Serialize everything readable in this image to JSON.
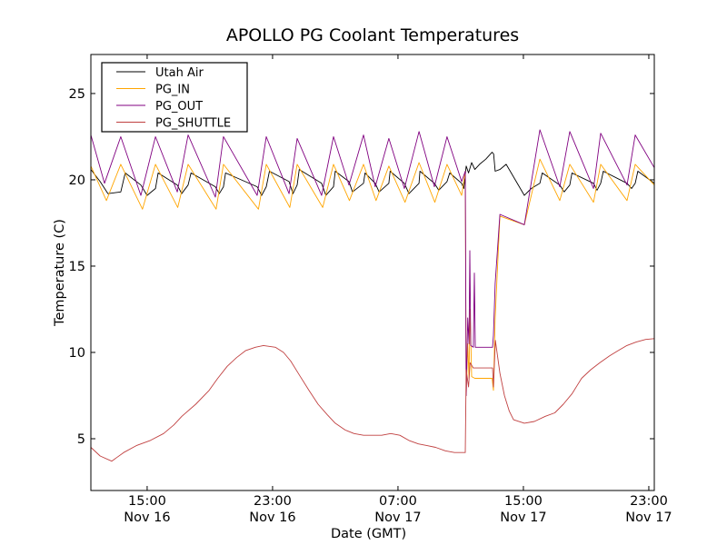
{
  "chart_data": {
    "type": "line",
    "title": "APOLLO PG Coolant Temperatures",
    "xlabel": "Date (GMT)",
    "ylabel": "Temperature (C)",
    "x_units": "hours since Nov 16 00:00 GMT",
    "xlim": [
      11.41,
      47.35
    ],
    "ylim": [
      2.0,
      27.26
    ],
    "grid": false,
    "legend_position": "top-left",
    "xticks": [
      {
        "value": 15,
        "label1": "15:00",
        "label2": "Nov 16"
      },
      {
        "value": 23,
        "label1": "23:00",
        "label2": "Nov 16"
      },
      {
        "value": 31,
        "label1": "07:00",
        "label2": "Nov 17"
      },
      {
        "value": 39,
        "label1": "15:00",
        "label2": "Nov 17"
      },
      {
        "value": 47,
        "label1": "23:00",
        "label2": "Nov 17"
      }
    ],
    "yticks": [
      {
        "value": 5,
        "label": "5"
      },
      {
        "value": 10,
        "label": "10"
      },
      {
        "value": 15,
        "label": "15"
      },
      {
        "value": 20,
        "label": "20"
      },
      {
        "value": 25,
        "label": "25"
      }
    ],
    "series": [
      {
        "name": "Utah Air",
        "color": "#000000",
        "points": [
          [
            11.41,
            20.6
          ],
          [
            12.0,
            19.9
          ],
          [
            12.5,
            19.2
          ],
          [
            13.32,
            19.3
          ],
          [
            13.6,
            20.4
          ],
          [
            14.6,
            19.7
          ],
          [
            15.0,
            19.1
          ],
          [
            15.53,
            19.5
          ],
          [
            15.7,
            20.4
          ],
          [
            16.92,
            19.7
          ],
          [
            17.2,
            19.2
          ],
          [
            17.61,
            19.7
          ],
          [
            17.8,
            20.4
          ],
          [
            19.35,
            19.6
          ],
          [
            19.6,
            19.2
          ],
          [
            19.87,
            19.6
          ],
          [
            20.0,
            20.4
          ],
          [
            22.02,
            19.6
          ],
          [
            22.3,
            19.1
          ],
          [
            22.6,
            19.6
          ],
          [
            22.8,
            20.5
          ],
          [
            24.05,
            19.9
          ],
          [
            24.3,
            19.2
          ],
          [
            24.57,
            19.7
          ],
          [
            24.7,
            20.6
          ],
          [
            26.13,
            19.8
          ],
          [
            26.4,
            19.1
          ],
          [
            26.89,
            19.6
          ],
          [
            27.0,
            20.5
          ],
          [
            27.87,
            19.9
          ],
          [
            28.1,
            19.3
          ],
          [
            28.8,
            19.8
          ],
          [
            28.9,
            20.4
          ],
          [
            29.55,
            19.8
          ],
          [
            29.8,
            19.3
          ],
          [
            30.42,
            19.8
          ],
          [
            30.5,
            20.5
          ],
          [
            31.41,
            19.8
          ],
          [
            31.7,
            19.2
          ],
          [
            32.34,
            19.8
          ],
          [
            32.4,
            20.5
          ],
          [
            33.32,
            19.8
          ],
          [
            33.6,
            19.4
          ],
          [
            34.13,
            19.9
          ],
          [
            34.3,
            20.4
          ],
          [
            35.06,
            19.8
          ],
          [
            35.2,
            19.5
          ],
          [
            35.35,
            20.8
          ],
          [
            35.5,
            20.4
          ],
          [
            35.7,
            21.0
          ],
          [
            35.9,
            20.6
          ],
          [
            36.2,
            20.9
          ],
          [
            36.6,
            21.2
          ],
          [
            37.0,
            21.6
          ],
          [
            37.1,
            21.5
          ],
          [
            37.2,
            20.5
          ],
          [
            37.5,
            20.6
          ],
          [
            37.9,
            20.9
          ],
          [
            39.06,
            19.1
          ],
          [
            39.5,
            19.5
          ],
          [
            40.05,
            19.8
          ],
          [
            40.2,
            20.4
          ],
          [
            41.32,
            19.7
          ],
          [
            41.6,
            19.3
          ],
          [
            41.96,
            19.7
          ],
          [
            42.1,
            20.4
          ],
          [
            43.47,
            19.8
          ],
          [
            43.7,
            19.4
          ],
          [
            43.93,
            19.8
          ],
          [
            44.1,
            20.5
          ],
          [
            45.61,
            19.8
          ],
          [
            45.9,
            19.5
          ],
          [
            46.13,
            19.8
          ],
          [
            46.3,
            20.5
          ],
          [
            47.35,
            19.8
          ]
        ]
      },
      {
        "name": "PG_IN",
        "color": "#ffa500",
        "points": [
          [
            11.41,
            20.8
          ],
          [
            12.4,
            18.8
          ],
          [
            13.32,
            20.9
          ],
          [
            14.7,
            18.3
          ],
          [
            15.53,
            20.9
          ],
          [
            16.95,
            18.4
          ],
          [
            17.61,
            20.9
          ],
          [
            19.4,
            18.3
          ],
          [
            19.87,
            20.9
          ],
          [
            22.1,
            18.3
          ],
          [
            22.6,
            20.9
          ],
          [
            24.1,
            18.4
          ],
          [
            24.57,
            20.9
          ],
          [
            26.2,
            18.4
          ],
          [
            26.89,
            20.9
          ],
          [
            27.9,
            18.8
          ],
          [
            28.8,
            20.9
          ],
          [
            29.6,
            18.8
          ],
          [
            30.42,
            20.8
          ],
          [
            31.45,
            18.7
          ],
          [
            32.34,
            21.0
          ],
          [
            33.35,
            18.7
          ],
          [
            34.13,
            20.9
          ],
          [
            35.06,
            19.1
          ],
          [
            35.29,
            20.5
          ],
          [
            35.35,
            7.5
          ],
          [
            35.45,
            10.5
          ],
          [
            35.53,
            8.5
          ],
          [
            35.6,
            12.5
          ],
          [
            35.7,
            8.6
          ],
          [
            35.9,
            8.5
          ],
          [
            37.0,
            8.5
          ],
          [
            37.09,
            7.8
          ],
          [
            37.2,
            12.0
          ],
          [
            37.5,
            17.9
          ],
          [
            39.06,
            17.4
          ],
          [
            40.05,
            21.2
          ],
          [
            41.32,
            18.8
          ],
          [
            41.96,
            20.9
          ],
          [
            43.47,
            18.7
          ],
          [
            43.93,
            20.9
          ],
          [
            45.61,
            18.8
          ],
          [
            46.13,
            20.9
          ],
          [
            47.35,
            19.7
          ]
        ]
      },
      {
        "name": "PG_OUT",
        "color": "#800080",
        "points": [
          [
            11.41,
            22.6
          ],
          [
            12.28,
            19.8
          ],
          [
            13.32,
            22.5
          ],
          [
            14.6,
            19.1
          ],
          [
            15.53,
            22.5
          ],
          [
            16.92,
            19.3
          ],
          [
            17.61,
            22.6
          ],
          [
            19.35,
            19.0
          ],
          [
            19.87,
            22.5
          ],
          [
            22.02,
            19.1
          ],
          [
            22.6,
            22.5
          ],
          [
            24.05,
            19.2
          ],
          [
            24.57,
            22.4
          ],
          [
            26.13,
            19.1
          ],
          [
            26.89,
            22.5
          ],
          [
            27.87,
            19.7
          ],
          [
            28.8,
            22.6
          ],
          [
            29.55,
            19.6
          ],
          [
            30.42,
            22.4
          ],
          [
            31.41,
            19.5
          ],
          [
            32.34,
            22.8
          ],
          [
            33.32,
            19.6
          ],
          [
            34.13,
            22.5
          ],
          [
            35.06,
            19.9
          ],
          [
            35.29,
            20.5
          ],
          [
            35.35,
            7.5
          ],
          [
            35.45,
            12.0
          ],
          [
            35.53,
            10.5
          ],
          [
            35.58,
            15.9
          ],
          [
            35.64,
            10.4
          ],
          [
            35.81,
            10.3
          ],
          [
            35.87,
            14.6
          ],
          [
            35.93,
            10.3
          ],
          [
            37.03,
            10.3
          ],
          [
            37.09,
            11.0
          ],
          [
            37.2,
            14.0
          ],
          [
            37.5,
            18.0
          ],
          [
            39.06,
            17.4
          ],
          [
            40.05,
            22.9
          ],
          [
            41.32,
            19.6
          ],
          [
            41.96,
            22.8
          ],
          [
            43.47,
            19.5
          ],
          [
            43.93,
            22.7
          ],
          [
            45.61,
            19.7
          ],
          [
            46.13,
            22.6
          ],
          [
            47.35,
            20.7
          ]
        ]
      },
      {
        "name": "PG_SHUTTLE",
        "color": "#c04040",
        "points": [
          [
            11.41,
            4.5
          ],
          [
            12.0,
            4.0
          ],
          [
            12.74,
            3.7
          ],
          [
            13.5,
            4.2
          ],
          [
            14.31,
            4.6
          ],
          [
            15.2,
            4.9
          ],
          [
            16.05,
            5.3
          ],
          [
            16.7,
            5.8
          ],
          [
            17.21,
            6.3
          ],
          [
            18.1,
            7.0
          ],
          [
            18.95,
            7.8
          ],
          [
            19.5,
            8.5
          ],
          [
            20.11,
            9.2
          ],
          [
            20.7,
            9.7
          ],
          [
            21.27,
            10.1
          ],
          [
            21.9,
            10.3
          ],
          [
            22.42,
            10.4
          ],
          [
            23.18,
            10.3
          ],
          [
            23.7,
            10.0
          ],
          [
            24.16,
            9.5
          ],
          [
            24.7,
            8.7
          ],
          [
            25.32,
            7.8
          ],
          [
            25.9,
            7.0
          ],
          [
            26.48,
            6.4
          ],
          [
            27.0,
            5.9
          ],
          [
            27.64,
            5.5
          ],
          [
            28.2,
            5.3
          ],
          [
            28.8,
            5.2
          ],
          [
            29.4,
            5.2
          ],
          [
            29.96,
            5.2
          ],
          [
            30.54,
            5.3
          ],
          [
            31.12,
            5.2
          ],
          [
            31.7,
            4.9
          ],
          [
            32.3,
            4.7
          ],
          [
            32.86,
            4.6
          ],
          [
            33.4,
            4.5
          ],
          [
            34.02,
            4.3
          ],
          [
            34.6,
            4.2
          ],
          [
            35.29,
            4.2
          ],
          [
            35.35,
            9.0
          ],
          [
            35.5,
            8.0
          ],
          [
            35.6,
            9.4
          ],
          [
            35.8,
            9.1
          ],
          [
            37.03,
            9.1
          ],
          [
            37.09,
            8.0
          ],
          [
            37.21,
            10.7
          ],
          [
            37.5,
            8.8
          ],
          [
            37.79,
            7.5
          ],
          [
            38.1,
            6.6
          ],
          [
            38.37,
            6.1
          ],
          [
            39.06,
            5.9
          ],
          [
            39.7,
            6.0
          ],
          [
            40.4,
            6.3
          ],
          [
            41.0,
            6.5
          ],
          [
            41.55,
            7.0
          ],
          [
            42.1,
            7.6
          ],
          [
            42.71,
            8.5
          ],
          [
            43.3,
            9.0
          ],
          [
            43.87,
            9.4
          ],
          [
            44.5,
            9.8
          ],
          [
            45.03,
            10.1
          ],
          [
            45.6,
            10.4
          ],
          [
            46.19,
            10.6
          ],
          [
            46.8,
            10.75
          ],
          [
            47.35,
            10.8
          ]
        ]
      }
    ]
  }
}
